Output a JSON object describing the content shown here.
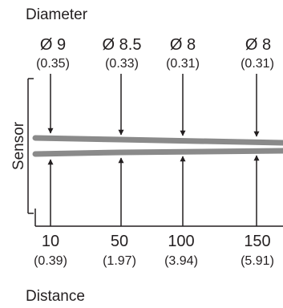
{
  "labels": {
    "diameter": "Diameter",
    "distance": "Distance",
    "sensor": "Sensor"
  },
  "stations": [
    {
      "diameter": "Ø 9",
      "diameter_inch": "(0.35)",
      "distance": "10",
      "distance_inch": "(0.39)"
    },
    {
      "diameter": "Ø 8.5",
      "diameter_inch": "(0.33)",
      "distance": "50",
      "distance_inch": "(1.97)"
    },
    {
      "diameter": "Ø 8",
      "diameter_inch": "(0.31)",
      "distance": "100",
      "distance_inch": "(3.94)"
    },
    {
      "diameter": "Ø 8",
      "diameter_inch": "(0.31)",
      "distance": "150",
      "distance_inch": "(5.91)"
    }
  ],
  "colors": {
    "beam": "#8a8a8a",
    "line": "#231f20"
  }
}
